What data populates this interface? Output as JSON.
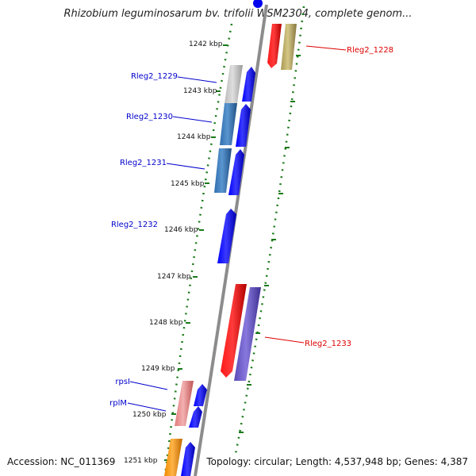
{
  "title": "Rhizobium leguminosarum bv. trifolii WSM2304, complete genom...",
  "footer": {
    "accession": "Accession: NC_011369",
    "topology": "Topology: circular; Length: 4,537,948 bp; Genes: 4,387"
  },
  "ticks": [
    "1242 kbp",
    "1243 kbp",
    "1244 kbp",
    "1245 kbp",
    "1246 kbp",
    "1247 kbp",
    "1248 kbp",
    "1249 kbp",
    "1250 kbp",
    "1251 kbp"
  ],
  "gene_labels": [
    "Rleg2_1228",
    "Rleg2_1229",
    "Rleg2_1230",
    "Rleg2_1231",
    "Rleg2_1232",
    "Rleg2_1233",
    "rpsI",
    "rplM"
  ],
  "colors": {
    "backbone": "#8c8c8c",
    "tick": "#1a7a1a",
    "label_blue": "#0000cc",
    "label_red": "#dd0000",
    "cds_forward": "#0000ee",
    "cds_reverse": "#ee0000"
  }
}
